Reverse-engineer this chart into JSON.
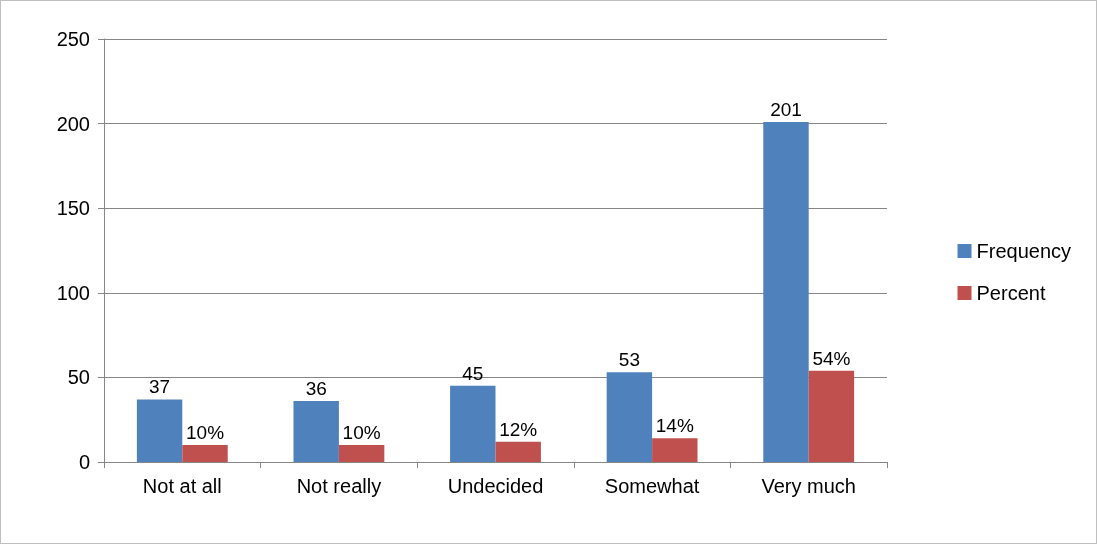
{
  "chart_data": {
    "type": "bar",
    "categories": [
      "Not at all",
      "Not really",
      "Undecided",
      "Somewhat",
      "Very much"
    ],
    "series": [
      {
        "name": "Frequency",
        "color": "#4f81bd",
        "values": [
          37,
          36,
          45,
          53,
          201
        ],
        "value_labels": [
          "37",
          "36",
          "45",
          "53",
          "201"
        ]
      },
      {
        "name": "Percent",
        "color": "#c0504d",
        "values": [
          10,
          10,
          12,
          14,
          54
        ],
        "value_labels": [
          "10%",
          "10%",
          "12%",
          "14%",
          "54%"
        ]
      }
    ],
    "ylim": [
      0,
      250
    ],
    "yticks": [
      0,
      50,
      100,
      150,
      200,
      250
    ],
    "grid": "y",
    "legend": "right"
  }
}
